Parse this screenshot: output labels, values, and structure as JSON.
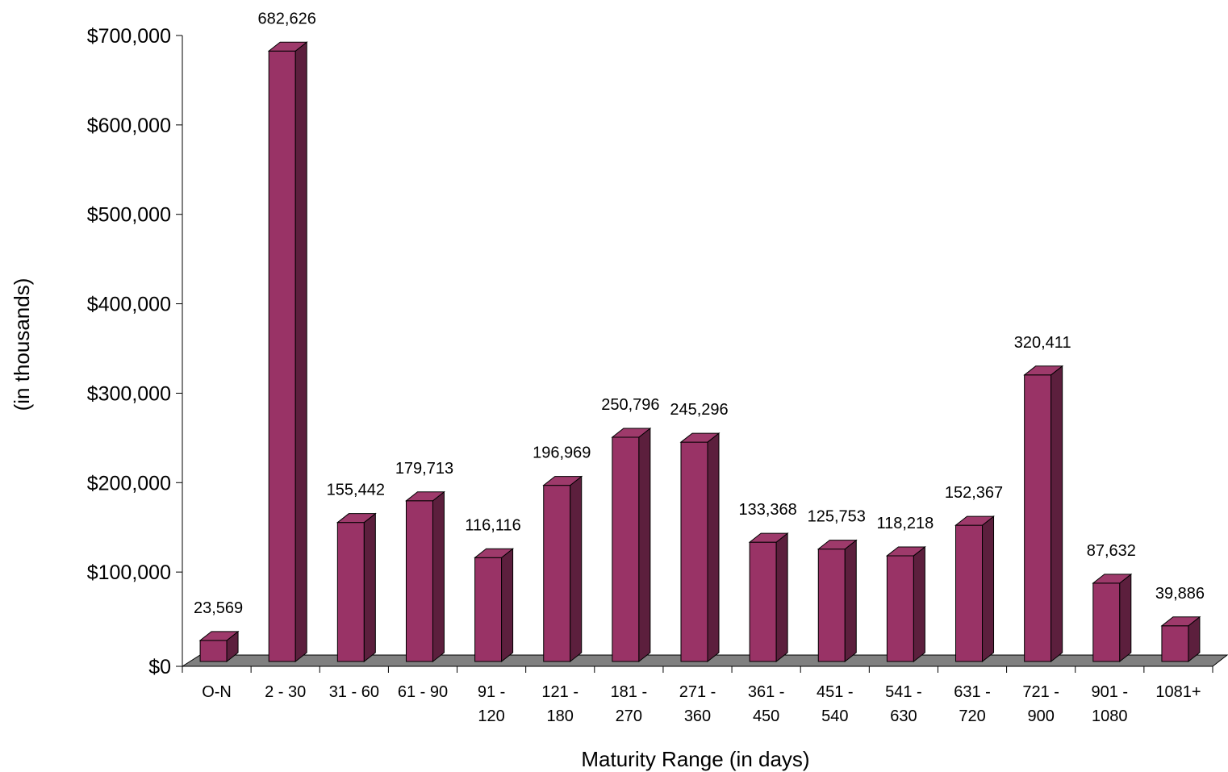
{
  "chart_data": {
    "type": "bar",
    "style": "3d-column",
    "xlabel": "Maturity Range (in days)",
    "ylabel": "(in thousands)",
    "ylim": [
      0,
      700000
    ],
    "yticks": [
      0,
      100000,
      200000,
      300000,
      400000,
      500000,
      600000,
      700000
    ],
    "ytick_labels": [
      "$0",
      "$100,000",
      "$200,000",
      "$300,000",
      "$400,000",
      "$500,000",
      "$600,000",
      "$700,000"
    ],
    "categories": [
      [
        "O-N"
      ],
      [
        "2 - 30"
      ],
      [
        "31 - 60"
      ],
      [
        "61 - 90"
      ],
      [
        "91 -",
        "120"
      ],
      [
        "121 -",
        "180"
      ],
      [
        "181 -",
        "270"
      ],
      [
        "271 -",
        "360"
      ],
      [
        "361 -",
        "450"
      ],
      [
        "451 -",
        "540"
      ],
      [
        "541 -",
        "630"
      ],
      [
        "631 -",
        "720"
      ],
      [
        "721 -",
        "900"
      ],
      [
        "901 -",
        "1080"
      ],
      [
        "1081+"
      ]
    ],
    "values": [
      23569,
      682626,
      155442,
      179713,
      116116,
      196969,
      250796,
      245296,
      133368,
      125753,
      118218,
      152367,
      320411,
      87632,
      39886
    ],
    "value_labels": [
      "23,569",
      "682,626",
      "155,442",
      "179,713",
      "116,116",
      "196,969",
      "250,796",
      "245,296",
      "133,368",
      "125,753",
      "118,218",
      "152,367",
      "320,411",
      "87,632",
      "39,886"
    ],
    "grid": false,
    "legend": "none",
    "colors": {
      "bar_front": "#993366",
      "bar_top": "#9e3a6b",
      "bar_side": "#5c1f3d",
      "floor": "#808080"
    }
  }
}
